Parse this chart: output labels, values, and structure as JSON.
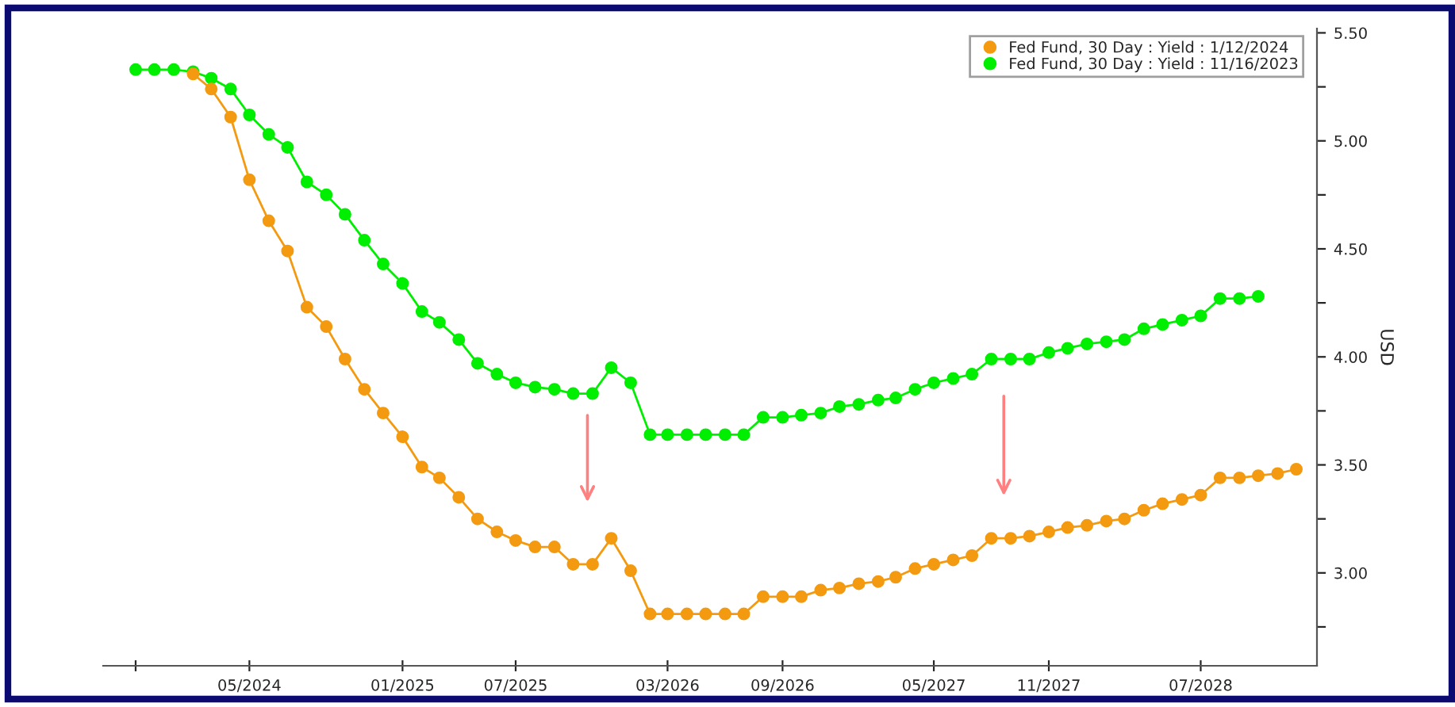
{
  "chart_data": {
    "type": "line",
    "ylabel": "USD",
    "legend": "top right",
    "grid": false,
    "marker": "circle",
    "line_style": "solid",
    "xlim": [
      "2023-09-10",
      "2029-01-03"
    ],
    "xticks": [
      {
        "value": "2023-11",
        "label": null
      },
      {
        "value": "2024-05",
        "label": "05/2024"
      },
      {
        "value": "2025-01",
        "label": "01/2025"
      },
      {
        "value": "2025-07",
        "label": "07/2025"
      },
      {
        "value": "2026-03",
        "label": "03/2026"
      },
      {
        "value": "2026-09",
        "label": "09/2026"
      },
      {
        "value": "2027-05",
        "label": "05/2027"
      },
      {
        "value": "2027-11",
        "label": "11/2027"
      },
      {
        "value": "2028-07",
        "label": "07/2028"
      }
    ],
    "ylim": [
      2.57,
      5.52
    ],
    "yticks": [
      {
        "value": 2.75,
        "label": null
      },
      {
        "value": 3.0,
        "label": "3.00"
      },
      {
        "value": 3.25,
        "label": null
      },
      {
        "value": 3.5,
        "label": "3.50"
      },
      {
        "value": 3.75,
        "label": null
      },
      {
        "value": 4.0,
        "label": "4.00"
      },
      {
        "value": 4.25,
        "label": null
      },
      {
        "value": 4.5,
        "label": "4.50"
      },
      {
        "value": 4.75,
        "label": null
      },
      {
        "value": 5.0,
        "label": "5.00"
      },
      {
        "value": 5.25,
        "label": null
      },
      {
        "value": 5.5,
        "label": "5.50"
      }
    ],
    "series": [
      {
        "name": "Fed Fund, 30 Day : Yield : 1/12/2024",
        "color": "#f39a10",
        "x": [
          "2024-02",
          "2024-03",
          "2024-04",
          "2024-05",
          "2024-06",
          "2024-07",
          "2024-08",
          "2024-09",
          "2024-10",
          "2024-11",
          "2024-12",
          "2025-01",
          "2025-02",
          "2025-03",
          "2025-04",
          "2025-05",
          "2025-06",
          "2025-07",
          "2025-08",
          "2025-09",
          "2025-10",
          "2025-11",
          "2025-12",
          "2026-01",
          "2026-02",
          "2026-03",
          "2026-04",
          "2026-05",
          "2026-06",
          "2026-07",
          "2026-08",
          "2026-09",
          "2026-10",
          "2026-11",
          "2026-12",
          "2027-01",
          "2027-02",
          "2027-03",
          "2027-04",
          "2027-05",
          "2027-06",
          "2027-07",
          "2027-08",
          "2027-09",
          "2027-10",
          "2027-11",
          "2027-12",
          "2028-01",
          "2028-02",
          "2028-03",
          "2028-04",
          "2028-05",
          "2028-06",
          "2028-07",
          "2028-08",
          "2028-09",
          "2028-10",
          "2028-11",
          "2028-12"
        ],
        "values": [
          5.31,
          5.24,
          5.11,
          4.82,
          4.63,
          4.49,
          4.23,
          4.14,
          3.99,
          3.85,
          3.74,
          3.63,
          3.49,
          3.44,
          3.35,
          3.25,
          3.19,
          3.15,
          3.12,
          3.12,
          3.04,
          3.04,
          3.16,
          3.01,
          2.81,
          2.81,
          2.81,
          2.81,
          2.81,
          2.81,
          2.89,
          2.89,
          2.89,
          2.92,
          2.93,
          2.95,
          2.96,
          2.98,
          3.02,
          3.04,
          3.06,
          3.08,
          3.16,
          3.16,
          3.17,
          3.19,
          3.21,
          3.22,
          3.24,
          3.25,
          3.29,
          3.32,
          3.34,
          3.36,
          3.44,
          3.44,
          3.45,
          3.46,
          3.48
        ]
      },
      {
        "name": "Fed Fund, 30 Day : Yield : 11/16/2023",
        "color": "#00ee00",
        "x": [
          "2023-11",
          "2023-12",
          "2024-01",
          "2024-02",
          "2024-03",
          "2024-04",
          "2024-05",
          "2024-06",
          "2024-07",
          "2024-08",
          "2024-09",
          "2024-10",
          "2024-11",
          "2024-12",
          "2025-01",
          "2025-02",
          "2025-03",
          "2025-04",
          "2025-05",
          "2025-06",
          "2025-07",
          "2025-08",
          "2025-09",
          "2025-10",
          "2025-11",
          "2025-12",
          "2026-01",
          "2026-02",
          "2026-03",
          "2026-04",
          "2026-05",
          "2026-06",
          "2026-07",
          "2026-08",
          "2026-09",
          "2026-10",
          "2026-11",
          "2026-12",
          "2027-01",
          "2027-02",
          "2027-03",
          "2027-04",
          "2027-05",
          "2027-06",
          "2027-07",
          "2027-08",
          "2027-09",
          "2027-10",
          "2027-11",
          "2027-12",
          "2028-01",
          "2028-02",
          "2028-03",
          "2028-04",
          "2028-05",
          "2028-06",
          "2028-07",
          "2028-08",
          "2028-09",
          "2028-10"
        ],
        "values": [
          5.33,
          5.33,
          5.33,
          5.32,
          5.29,
          5.24,
          5.12,
          5.03,
          4.97,
          4.81,
          4.75,
          4.66,
          4.54,
          4.43,
          4.34,
          4.21,
          4.16,
          4.08,
          3.97,
          3.92,
          3.88,
          3.86,
          3.85,
          3.83,
          3.83,
          3.95,
          3.88,
          3.64,
          3.64,
          3.64,
          3.64,
          3.64,
          3.64,
          3.72,
          3.72,
          3.73,
          3.74,
          3.77,
          3.78,
          3.8,
          3.81,
          3.85,
          3.88,
          3.9,
          3.92,
          3.99,
          3.99,
          3.99,
          4.02,
          4.04,
          4.06,
          4.07,
          4.08,
          4.13,
          4.15,
          4.17,
          4.19,
          4.27,
          4.27,
          4.28
        ]
      }
    ]
  }
}
